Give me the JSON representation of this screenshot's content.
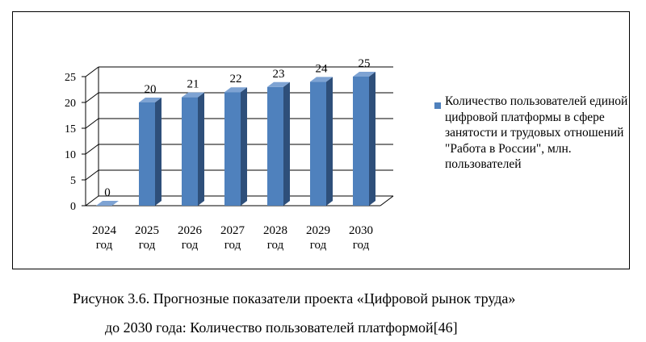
{
  "chart_data": {
    "type": "bar",
    "categories": [
      [
        "2024",
        "год"
      ],
      [
        "2025",
        "год"
      ],
      [
        "2026",
        "год"
      ],
      [
        "2027",
        "год"
      ],
      [
        "2028",
        "год"
      ],
      [
        "2029",
        "год"
      ],
      [
        "2030",
        "год"
      ]
    ],
    "series": [
      {
        "name": "Количество пользователей единой цифровой платформы в сфере занятости и трудовых отношений \"Работа в России\", млн. пользователей",
        "values": [
          0,
          20,
          21,
          22,
          23,
          24,
          25
        ]
      }
    ],
    "data_labels": [
      "0",
      "20",
      "21",
      "22",
      "23",
      "24",
      "25"
    ],
    "y_ticks": [
      0,
      5,
      10,
      15,
      20,
      25
    ],
    "ylim": [
      0,
      25
    ],
    "grid": true,
    "legend_position": "right",
    "bar_style": "3d-column",
    "colors": {
      "bar_front": "#4f81bd",
      "bar_side": "#2e4f7a",
      "bar_top": "#7ea3d3",
      "grid": "#000000"
    }
  },
  "caption": {
    "line1": "Рисунок 3.6. Прогнозные показатели проекта «Цифровой рынок труда»",
    "line2": "до 2030 года: Количество пользователей платформой[46]"
  }
}
